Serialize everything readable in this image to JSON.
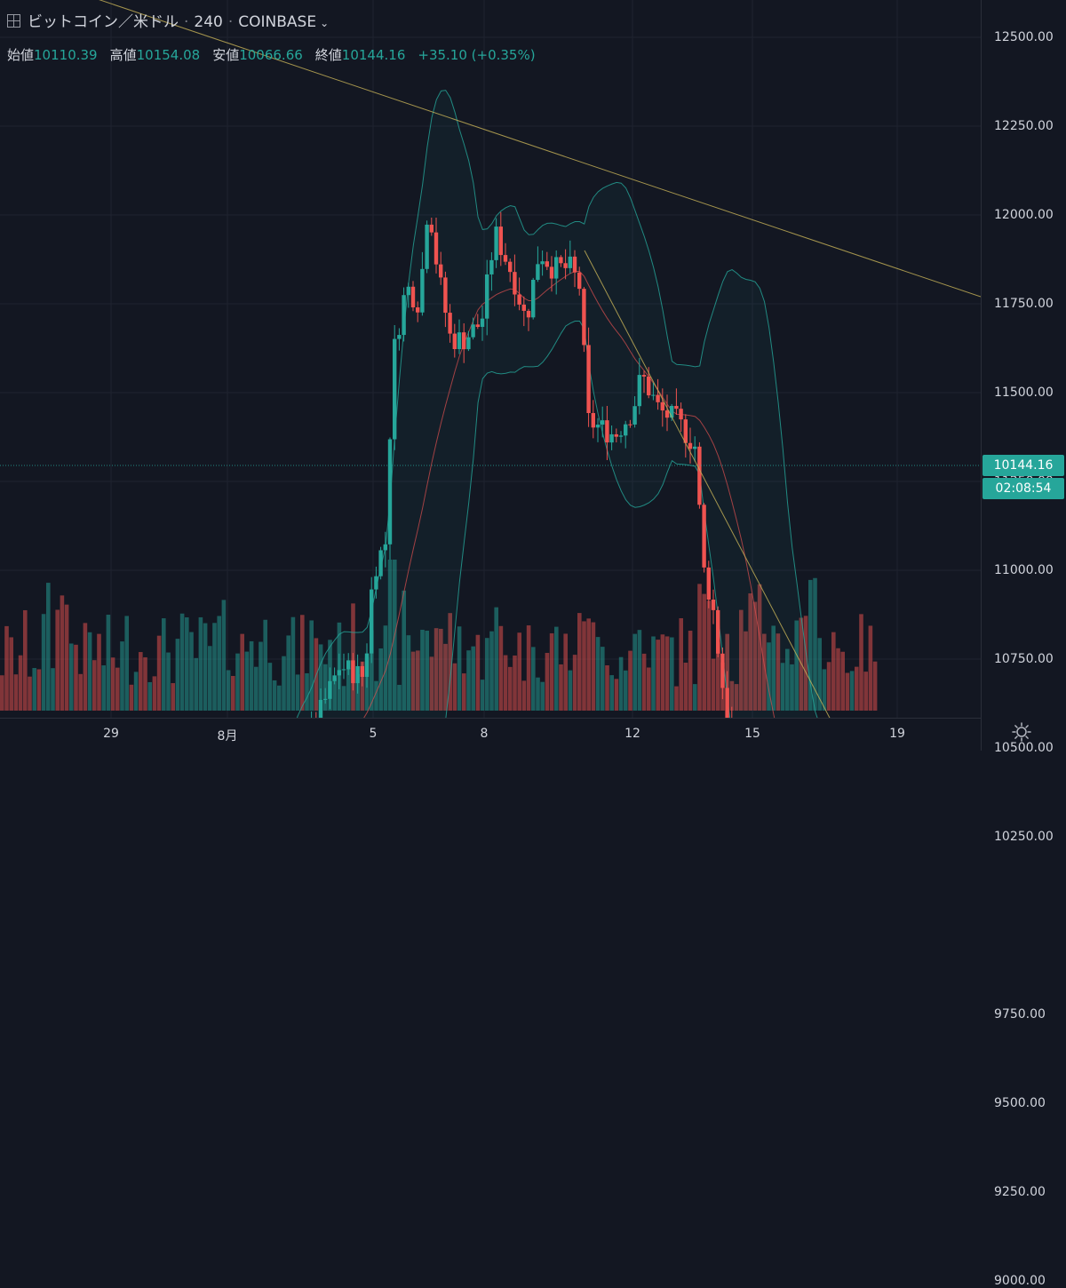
{
  "legend": {
    "symbol": "ビットコイン／米ドル",
    "interval": "240",
    "exchange": "COINBASE"
  },
  "ohlc": {
    "open_label": "始値",
    "open": "10110.39",
    "high_label": "高値",
    "high": "10154.08",
    "low_label": "安値",
    "low": "10066.66",
    "close_label": "終値",
    "close": "10144.16",
    "change": "+35.10 (+0.35%)"
  },
  "last_price_tag": "10144.16",
  "countdown_tag": "02:08:54",
  "price_axis_labels": [
    "12500.00",
    "12250.00",
    "12000.00",
    "11750.00",
    "11500.00",
    "11250.00",
    "11000.00",
    "10750.00",
    "10500.00",
    "10250.00",
    "9750.00",
    "9500.00",
    "9250.00",
    "9000.00"
  ],
  "time_axis_labels": [
    "29",
    "8月",
    "5",
    "8",
    "12",
    "15",
    "19"
  ],
  "colors": {
    "background": "#131722",
    "up": "#26a69a",
    "down": "#ef5350",
    "bollinger": "#26a69a",
    "midline": "#e05050",
    "trendline": "#c9b458"
  },
  "chart_data": {
    "type": "candlestick",
    "title": "",
    "ylabel": "",
    "ylim": [
      8800,
      12700
    ],
    "y_ticks": [
      9000,
      9250,
      9500,
      9750,
      10250,
      10500,
      10750,
      11000,
      11250,
      11500,
      11750,
      12000,
      12250,
      12500
    ],
    "x_ticks": [
      "29",
      "8月",
      "5",
      "8",
      "12",
      "15",
      "19"
    ],
    "last_price": 10144.16,
    "indicators": [
      "Bollinger Bands",
      "Volume",
      "Trend lines"
    ]
  }
}
